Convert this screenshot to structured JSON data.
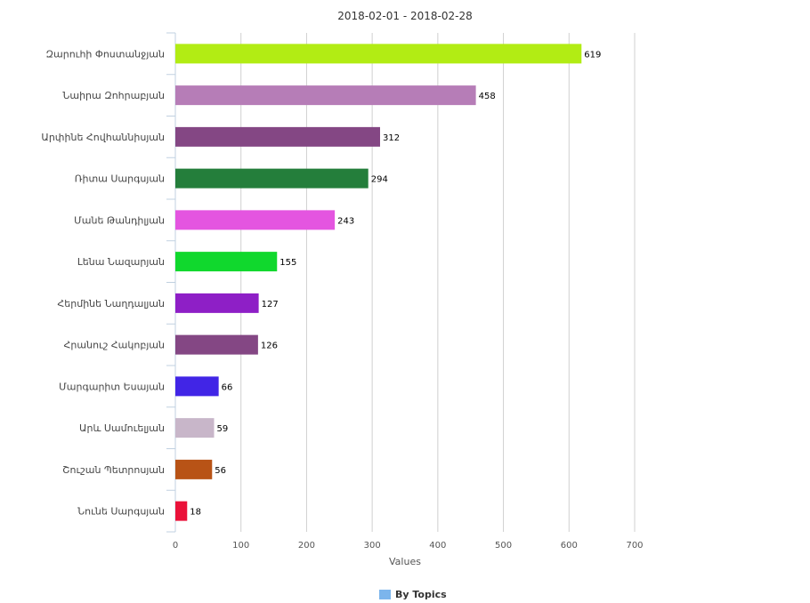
{
  "chart_data": {
    "type": "bar",
    "orientation": "horizontal",
    "title": "2018-02-01 - 2018-02-28",
    "xlabel": "Values",
    "ylabel": "",
    "xlim": [
      0,
      700
    ],
    "x_ticks": [
      0,
      100,
      200,
      300,
      400,
      500,
      600,
      700
    ],
    "grid": true,
    "legend": {
      "position": "bottom",
      "entries": [
        {
          "name": "By Topics",
          "color": "#7cb5ec"
        }
      ]
    },
    "categories": [
      "Զարուհի Փոստանջյան",
      "Նաիրա Զոհրաբյան",
      "Արփինե Հովհաննիսյան",
      "Ռիտա Սարգսյան",
      "Մանե Թանդիլյան",
      "Լենա Նազարյան",
      "Հերմինե Նաղդալյան",
      "Հրանուշ Հակոբյան",
      "Մարգարիտ Եսայան",
      "Արև Սամուելյան",
      "Շուշան Պետրոսյան",
      "Նունե Սարգսյան"
    ],
    "values": [
      619,
      458,
      312,
      294,
      243,
      155,
      127,
      126,
      66,
      59,
      56,
      18
    ],
    "colors": [
      "#b2ec14",
      "#b67db7",
      "#844784",
      "#247e3b",
      "#e455e0",
      "#10d82d",
      "#8e1fc6",
      "#844784",
      "#4125e6",
      "#c8b6c9",
      "#b85316",
      "#ea1139"
    ],
    "series": [
      {
        "name": "By Topics",
        "values": [
          619,
          458,
          312,
          294,
          243,
          155,
          127,
          126,
          66,
          59,
          56,
          18
        ]
      }
    ]
  }
}
